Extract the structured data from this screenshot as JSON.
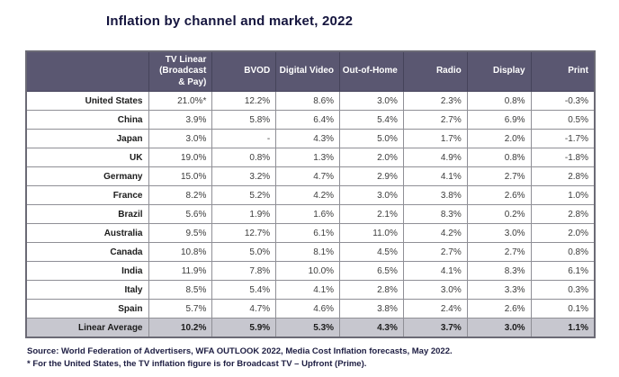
{
  "title": "Inflation by channel and market, 2022",
  "colors": {
    "header_bg": "#5a5771",
    "summary_bg": "#c7c7cf",
    "title_color": "#15153e",
    "note_color": "#1d1d42"
  },
  "chart_data": {
    "type": "table",
    "title": "Inflation by channel and market, 2022",
    "columns": [
      "TV Linear (Broadcast & Pay)",
      "BVOD",
      "Digital Video",
      "Out-of-Home",
      "Radio",
      "Display",
      "Print"
    ],
    "rows": [
      {
        "market": "United States",
        "values": [
          "21.0%*",
          "12.2%",
          "8.6%",
          "3.0%",
          "2.3%",
          "0.8%",
          "-0.3%"
        ]
      },
      {
        "market": "China",
        "values": [
          "3.9%",
          "5.8%",
          "6.4%",
          "5.4%",
          "2.7%",
          "6.9%",
          "0.5%"
        ]
      },
      {
        "market": "Japan",
        "values": [
          "3.0%",
          "-",
          "4.3%",
          "5.0%",
          "1.7%",
          "2.0%",
          "-1.7%"
        ]
      },
      {
        "market": "UK",
        "values": [
          "19.0%",
          "0.8%",
          "1.3%",
          "2.0%",
          "4.9%",
          "0.8%",
          "-1.8%"
        ]
      },
      {
        "market": "Germany",
        "values": [
          "15.0%",
          "3.2%",
          "4.7%",
          "2.9%",
          "4.1%",
          "2.7%",
          "2.8%"
        ]
      },
      {
        "market": "France",
        "values": [
          "8.2%",
          "5.2%",
          "4.2%",
          "3.0%",
          "3.8%",
          "2.6%",
          "1.0%"
        ]
      },
      {
        "market": "Brazil",
        "values": [
          "5.6%",
          "1.9%",
          "1.6%",
          "2.1%",
          "8.3%",
          "0.2%",
          "2.8%"
        ]
      },
      {
        "market": "Australia",
        "values": [
          "9.5%",
          "12.7%",
          "6.1%",
          "11.0%",
          "4.2%",
          "3.0%",
          "2.0%"
        ]
      },
      {
        "market": "Canada",
        "values": [
          "10.8%",
          "5.0%",
          "8.1%",
          "4.5%",
          "2.7%",
          "2.7%",
          "0.8%"
        ]
      },
      {
        "market": "India",
        "values": [
          "11.9%",
          "7.8%",
          "10.0%",
          "6.5%",
          "4.1%",
          "8.3%",
          "6.1%"
        ]
      },
      {
        "market": "Italy",
        "values": [
          "8.5%",
          "5.4%",
          "4.1%",
          "2.8%",
          "3.0%",
          "3.3%",
          "0.3%"
        ]
      },
      {
        "market": "Spain",
        "values": [
          "5.7%",
          "4.7%",
          "4.6%",
          "3.8%",
          "2.4%",
          "2.6%",
          "0.1%"
        ]
      }
    ],
    "summary": {
      "market": "Linear Average",
      "values": [
        "10.2%",
        "5.9%",
        "5.3%",
        "4.3%",
        "3.7%",
        "3.0%",
        "1.1%"
      ]
    },
    "notes": [
      "Source: World Federation of Advertisers, WFA OUTLOOK 2022, Media Cost Inflation forecasts, May 2022.",
      "* For the United States, the TV inflation figure is for Broadcast TV – Upfront (Prime)."
    ]
  }
}
